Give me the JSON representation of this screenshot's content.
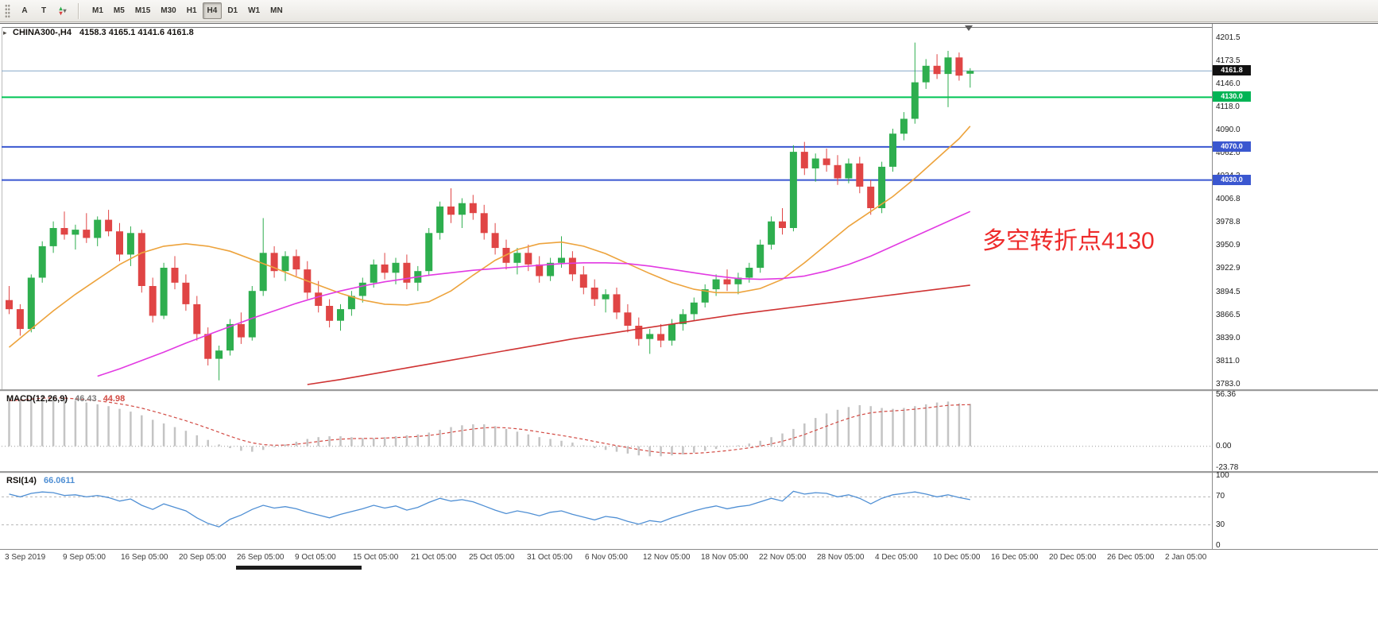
{
  "toolbar": {
    "tools": [
      {
        "name": "text-tool",
        "label": "A"
      },
      {
        "name": "type-tool",
        "label": "T"
      },
      {
        "name": "arrow-up-glyph",
        "label": "▴"
      },
      {
        "name": "arrow-down-glyph",
        "label": "▾"
      },
      {
        "name": "tool-caret",
        "label": "▾"
      }
    ],
    "timeframes": [
      "M1",
      "M5",
      "M15",
      "M30",
      "H1",
      "H4",
      "D1",
      "W1",
      "MN"
    ],
    "active_timeframe": "H4"
  },
  "chart": {
    "header": {
      "symbol": "CHINA300-,H4",
      "ohlc": "4158.3 4165.1 4141.6 4161.8"
    },
    "annotation": {
      "text": "多空转折点4130",
      "color": "#ee2b2b"
    },
    "colors": {
      "up": "#2eae4e",
      "down": "#e04545",
      "ma_fast": "#eda33c",
      "ma_mid": "#e23ae2",
      "ma_slow": "#cf3333",
      "macd_hist": "#c4c4c4",
      "macd_signal": "#d24a43",
      "rsi": "#4f8fd4",
      "level_green": "#00c455",
      "level_blue": "#3a57d0",
      "price_line": "#86a8c8"
    },
    "levels": [
      {
        "price": 4161.8,
        "color_key": "price_line",
        "width": 1
      },
      {
        "price": 4130.0,
        "color_key": "level_green",
        "width": 2
      },
      {
        "price": 4070.0,
        "color_key": "level_blue",
        "width": 2
      },
      {
        "price": 4030.0,
        "color_key": "level_blue",
        "width": 2
      }
    ],
    "badges": [
      {
        "text": "4161.8",
        "price": 4161.8,
        "bg": "#111111"
      },
      {
        "text": "4130.0",
        "price": 4130.0,
        "bg": "#00b455"
      },
      {
        "text": "4070.0",
        "price": 4070.0,
        "bg": "#3a57d0"
      },
      {
        "text": "4030.0",
        "price": 4030.0,
        "bg": "#3a57d0"
      }
    ]
  },
  "chart_data": {
    "type": "candlestick",
    "symbol": "CHINA300-,H4",
    "timeframe": "H4",
    "y_domain": [
      3782,
      4210
    ],
    "price_ticks": [
      "4201.5",
      "4173.5",
      "4146.0",
      "4118.0",
      "4090.0",
      "4062.0",
      "4034.3",
      "4006.8",
      "3978.8",
      "3950.9",
      "3922.9",
      "3894.5",
      "3866.5",
      "3839.0",
      "3811.0",
      "3783.0"
    ],
    "candles": [
      [
        3885,
        3902,
        3868,
        3874
      ],
      [
        3874,
        3880,
        3842,
        3850
      ],
      [
        3850,
        3916,
        3846,
        3912
      ],
      [
        3912,
        3956,
        3906,
        3950
      ],
      [
        3950,
        3980,
        3942,
        3972
      ],
      [
        3972,
        3992,
        3958,
        3964
      ],
      [
        3964,
        3976,
        3946,
        3970
      ],
      [
        3970,
        3990,
        3954,
        3960
      ],
      [
        3960,
        3986,
        3950,
        3982
      ],
      [
        3982,
        3994,
        3962,
        3968
      ],
      [
        3968,
        3978,
        3932,
        3940
      ],
      [
        3940,
        3974,
        3926,
        3966
      ],
      [
        3966,
        3970,
        3894,
        3902
      ],
      [
        3902,
        3912,
        3858,
        3866
      ],
      [
        3866,
        3930,
        3862,
        3924
      ],
      [
        3924,
        3938,
        3898,
        3906
      ],
      [
        3906,
        3916,
        3872,
        3880
      ],
      [
        3880,
        3890,
        3836,
        3844
      ],
      [
        3844,
        3852,
        3806,
        3814
      ],
      [
        3814,
        3830,
        3788,
        3824
      ],
      [
        3824,
        3862,
        3818,
        3856
      ],
      [
        3856,
        3870,
        3832,
        3840
      ],
      [
        3840,
        3902,
        3836,
        3896
      ],
      [
        3896,
        3984,
        3890,
        3942
      ],
      [
        3942,
        3950,
        3912,
        3920
      ],
      [
        3920,
        3944,
        3908,
        3938
      ],
      [
        3938,
        3946,
        3914,
        3922
      ],
      [
        3922,
        3932,
        3886,
        3894
      ],
      [
        3894,
        3908,
        3870,
        3878
      ],
      [
        3878,
        3886,
        3852,
        3860
      ],
      [
        3860,
        3880,
        3848,
        3874
      ],
      [
        3874,
        3896,
        3866,
        3890
      ],
      [
        3890,
        3912,
        3882,
        3906
      ],
      [
        3906,
        3934,
        3900,
        3928
      ],
      [
        3928,
        3942,
        3910,
        3918
      ],
      [
        3918,
        3936,
        3904,
        3930
      ],
      [
        3930,
        3940,
        3898,
        3906
      ],
      [
        3906,
        3926,
        3896,
        3920
      ],
      [
        3920,
        3972,
        3914,
        3966
      ],
      [
        3966,
        4004,
        3958,
        3998
      ],
      [
        3998,
        4020,
        3978,
        3988
      ],
      [
        3988,
        4008,
        3972,
        4002
      ],
      [
        4002,
        4012,
        3982,
        3990
      ],
      [
        3990,
        4000,
        3958,
        3966
      ],
      [
        3966,
        3978,
        3940,
        3948
      ],
      [
        3948,
        3958,
        3922,
        3930
      ],
      [
        3930,
        3948,
        3916,
        3942
      ],
      [
        3942,
        3952,
        3920,
        3928
      ],
      [
        3928,
        3938,
        3906,
        3914
      ],
      [
        3914,
        3936,
        3908,
        3930
      ],
      [
        3930,
        3962,
        3924,
        3936
      ],
      [
        3936,
        3944,
        3908,
        3916
      ],
      [
        3916,
        3926,
        3892,
        3900
      ],
      [
        3900,
        3910,
        3878,
        3886
      ],
      [
        3886,
        3898,
        3870,
        3892
      ],
      [
        3892,
        3900,
        3862,
        3870
      ],
      [
        3870,
        3880,
        3846,
        3854
      ],
      [
        3854,
        3864,
        3830,
        3838
      ],
      [
        3838,
        3850,
        3820,
        3844
      ],
      [
        3844,
        3856,
        3828,
        3836
      ],
      [
        3836,
        3862,
        3830,
        3856
      ],
      [
        3856,
        3874,
        3848,
        3868
      ],
      [
        3868,
        3888,
        3860,
        3882
      ],
      [
        3882,
        3904,
        3876,
        3898
      ],
      [
        3898,
        3916,
        3890,
        3910
      ],
      [
        3910,
        3922,
        3896,
        3904
      ],
      [
        3904,
        3918,
        3892,
        3912
      ],
      [
        3912,
        3930,
        3906,
        3924
      ],
      [
        3924,
        3958,
        3918,
        3952
      ],
      [
        3952,
        3986,
        3946,
        3980
      ],
      [
        3980,
        3996,
        3964,
        3972
      ],
      [
        3972,
        4072,
        3968,
        4064
      ],
      [
        4064,
        4076,
        4036,
        4044
      ],
      [
        4044,
        4062,
        4028,
        4056
      ],
      [
        4056,
        4068,
        4040,
        4048
      ],
      [
        4048,
        4060,
        4024,
        4032
      ],
      [
        4032,
        4056,
        4026,
        4050
      ],
      [
        4050,
        4058,
        4014,
        4022
      ],
      [
        4022,
        4030,
        3988,
        3996
      ],
      [
        3996,
        4052,
        3990,
        4046
      ],
      [
        4046,
        4092,
        4040,
        4086
      ],
      [
        4086,
        4112,
        4078,
        4104
      ],
      [
        4104,
        4196,
        4098,
        4148
      ],
      [
        4148,
        4176,
        4140,
        4168
      ],
      [
        4168,
        4182,
        4152,
        4158
      ],
      [
        4158,
        4186,
        4118,
        4178
      ],
      [
        4178,
        4184,
        4150,
        4156
      ],
      [
        4158.3,
        4165.1,
        4141.6,
        4161.8
      ]
    ],
    "ma_lines": [
      {
        "name": "ma-fast-line",
        "color_key": "ma_fast",
        "points": [
          [
            0,
            3828
          ],
          [
            2,
            3850
          ],
          [
            4,
            3872
          ],
          [
            6,
            3892
          ],
          [
            8,
            3910
          ],
          [
            10,
            3928
          ],
          [
            12,
            3942
          ],
          [
            14,
            3950
          ],
          [
            16,
            3953
          ],
          [
            18,
            3950
          ],
          [
            20,
            3944
          ],
          [
            22,
            3934
          ],
          [
            24,
            3924
          ],
          [
            26,
            3913
          ],
          [
            28,
            3903
          ],
          [
            30,
            3893
          ],
          [
            32,
            3885
          ],
          [
            34,
            3880
          ],
          [
            36,
            3879
          ],
          [
            38,
            3883
          ],
          [
            40,
            3896
          ],
          [
            42,
            3915
          ],
          [
            44,
            3933
          ],
          [
            46,
            3946
          ],
          [
            48,
            3953
          ],
          [
            50,
            3955
          ],
          [
            52,
            3950
          ],
          [
            54,
            3941
          ],
          [
            56,
            3929
          ],
          [
            58,
            3917
          ],
          [
            60,
            3906
          ],
          [
            62,
            3898
          ],
          [
            64,
            3894
          ],
          [
            66,
            3894
          ],
          [
            68,
            3899
          ],
          [
            70,
            3910
          ],
          [
            72,
            3930
          ],
          [
            74,
            3952
          ],
          [
            76,
            3974
          ],
          [
            78,
            3992
          ],
          [
            80,
            4010
          ],
          [
            82,
            4032
          ],
          [
            84,
            4056
          ],
          [
            86,
            4080
          ],
          [
            87,
            4095
          ]
        ]
      },
      {
        "name": "ma-mid-line",
        "color_key": "ma_mid",
        "points": [
          [
            8,
            3793
          ],
          [
            10,
            3802
          ],
          [
            12,
            3812
          ],
          [
            14,
            3822
          ],
          [
            16,
            3833
          ],
          [
            18,
            3843
          ],
          [
            20,
            3853
          ],
          [
            22,
            3863
          ],
          [
            24,
            3872
          ],
          [
            26,
            3881
          ],
          [
            28,
            3889
          ],
          [
            30,
            3896
          ],
          [
            32,
            3902
          ],
          [
            34,
            3907
          ],
          [
            36,
            3911
          ],
          [
            38,
            3915
          ],
          [
            40,
            3918
          ],
          [
            42,
            3921
          ],
          [
            44,
            3923
          ],
          [
            46,
            3925
          ],
          [
            48,
            3927
          ],
          [
            50,
            3929
          ],
          [
            52,
            3930
          ],
          [
            54,
            3930
          ],
          [
            56,
            3929
          ],
          [
            58,
            3926
          ],
          [
            60,
            3922
          ],
          [
            62,
            3918
          ],
          [
            64,
            3914
          ],
          [
            66,
            3911
          ],
          [
            68,
            3910
          ],
          [
            70,
            3911
          ],
          [
            72,
            3914
          ],
          [
            74,
            3920
          ],
          [
            76,
            3928
          ],
          [
            78,
            3938
          ],
          [
            80,
            3950
          ],
          [
            82,
            3962
          ],
          [
            84,
            3974
          ],
          [
            86,
            3986
          ],
          [
            87,
            3992
          ]
        ]
      },
      {
        "name": "ma-slow-line",
        "color_key": "ma_slow",
        "points": [
          [
            27,
            3783
          ],
          [
            30,
            3789
          ],
          [
            33,
            3796
          ],
          [
            36,
            3803
          ],
          [
            39,
            3810
          ],
          [
            42,
            3817
          ],
          [
            45,
            3824
          ],
          [
            48,
            3831
          ],
          [
            51,
            3838
          ],
          [
            54,
            3844
          ],
          [
            57,
            3850
          ],
          [
            60,
            3856
          ],
          [
            63,
            3862
          ],
          [
            66,
            3868
          ],
          [
            69,
            3873
          ],
          [
            72,
            3878
          ],
          [
            75,
            3883
          ],
          [
            78,
            3888
          ],
          [
            81,
            3893
          ],
          [
            84,
            3898
          ],
          [
            87,
            3903
          ]
        ]
      }
    ],
    "macd": {
      "label": "MACD(12,26,9)",
      "values": [
        "46.43",
        "44.98"
      ],
      "ticks": [
        "56.36",
        "0.00",
        "-23.78"
      ],
      "y_domain": [
        -23.78,
        56.36
      ],
      "histogram": [
        50,
        52,
        55,
        56,
        54,
        52,
        50,
        48,
        46,
        44,
        41,
        38,
        34,
        29,
        25,
        21,
        17,
        12,
        7,
        2,
        -2,
        -5,
        -6,
        -4,
        -1,
        2,
        5,
        8,
        10,
        11,
        11,
        10,
        9,
        9,
        10,
        11,
        12,
        13,
        15,
        18,
        21,
        23,
        24,
        24,
        22,
        19,
        16,
        13,
        10,
        8,
        6,
        4,
        1,
        -2,
        -4,
        -6,
        -8,
        -10,
        -11,
        -11,
        -10,
        -9,
        -7,
        -5,
        -3,
        -1,
        1,
        3,
        6,
        10,
        14,
        19,
        25,
        31,
        36,
        40,
        43,
        45,
        44,
        42,
        41,
        42,
        44,
        46,
        48,
        49,
        47,
        46.43
      ]
    },
    "rsi": {
      "label": "RSI(14)",
      "value": "66.0611",
      "ticks": [
        "100",
        "70",
        "30",
        "0"
      ],
      "levels": [
        70,
        30
      ],
      "y_domain": [
        0,
        100
      ],
      "values": [
        74,
        70,
        75,
        77,
        76,
        72,
        73,
        70,
        72,
        69,
        64,
        67,
        58,
        52,
        60,
        55,
        50,
        40,
        32,
        27,
        38,
        44,
        52,
        58,
        54,
        56,
        53,
        48,
        44,
        40,
        45,
        49,
        53,
        58,
        54,
        57,
        51,
        55,
        62,
        68,
        64,
        66,
        63,
        57,
        51,
        46,
        50,
        47,
        43,
        48,
        50,
        45,
        41,
        37,
        42,
        40,
        35,
        31,
        36,
        34,
        40,
        45,
        50,
        54,
        57,
        53,
        56,
        58,
        63,
        68,
        64,
        78,
        74,
        76,
        75,
        70,
        73,
        68,
        60,
        68,
        73,
        75,
        77,
        74,
        70,
        73,
        69,
        66.06
      ]
    },
    "time_labels": [
      "3 Sep 2019",
      "9 Sep 05:00",
      "16 Sep 05:00",
      "20 Sep 05:00",
      "26 Sep 05:00",
      "9 Oct 05:00",
      "15 Oct 05:00",
      "21 Oct 05:00",
      "25 Oct 05:00",
      "31 Oct 05:00",
      "6 Nov 05:00",
      "12 Nov 05:00",
      "18 Nov 05:00",
      "22 Nov 05:00",
      "28 Nov 05:00",
      "4 Dec 05:00",
      "10 Dec 05:00",
      "16 Dec 05:00",
      "20 Dec 05:00",
      "26 Dec 05:00",
      "2 Jan 05:00"
    ]
  }
}
